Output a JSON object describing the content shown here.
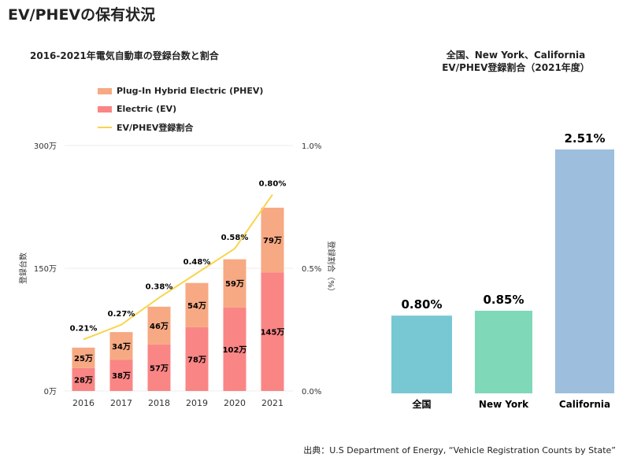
{
  "title": "EV/PHEVの保有状況",
  "source": "出典：U.S Department of Energy, “Vehicle Registration Counts by State”",
  "colors": {
    "phev": "#f7a983",
    "ev": "#fa8585",
    "line": "#f9d44a",
    "national": "#77c8d3",
    "newyork": "#7fd8b8",
    "california": "#9dbedd"
  },
  "chart_data": [
    {
      "type": "bar",
      "title": "2016-2021年電気自動車の登録台数と割合",
      "categories": [
        "2016",
        "2017",
        "2018",
        "2019",
        "2020",
        "2021"
      ],
      "series": [
        {
          "name": "Electric (EV)",
          "values": [
            28,
            38,
            57,
            78,
            102,
            145
          ],
          "labels": [
            "28万",
            "38万",
            "57万",
            "78万",
            "102万",
            "145万"
          ]
        },
        {
          "name": "Plug-In Hybrid Electric (PHEV)",
          "values": [
            25,
            34,
            46,
            54,
            59,
            79
          ],
          "labels": [
            "25万",
            "34万",
            "46万",
            "54万",
            "59万",
            "79万"
          ]
        },
        {
          "name": "EV/PHEV登録割合",
          "type": "line",
          "axis": "right",
          "values": [
            0.21,
            0.27,
            0.38,
            0.48,
            0.58,
            0.8
          ],
          "labels": [
            "0.21%",
            "0.27%",
            "0.38%",
            "0.48%",
            "0.58%",
            "0.80%"
          ]
        }
      ],
      "ylabel": "登録台数",
      "ylim": [
        0,
        300
      ],
      "yticks": [
        "0万",
        "150万",
        "300万"
      ],
      "y2label": "登録割合（%）",
      "y2lim": [
        0,
        1.0
      ],
      "y2ticks": [
        "0.0%",
        "0.5%",
        "1.0%"
      ],
      "grid": true,
      "legend": "top-left",
      "stacked": true
    },
    {
      "type": "bar",
      "title": "全国、New York、California\nEV/PHEV登録割合（2021年度）",
      "title_lines": [
        "全国、New York、California",
        "EV/PHEV登録割合（2021年度）"
      ],
      "categories": [
        "全国",
        "New York",
        "California"
      ],
      "values": [
        0.8,
        0.85,
        2.51
      ],
      "labels": [
        "0.80%",
        "0.85%",
        "2.51%"
      ]
    }
  ]
}
